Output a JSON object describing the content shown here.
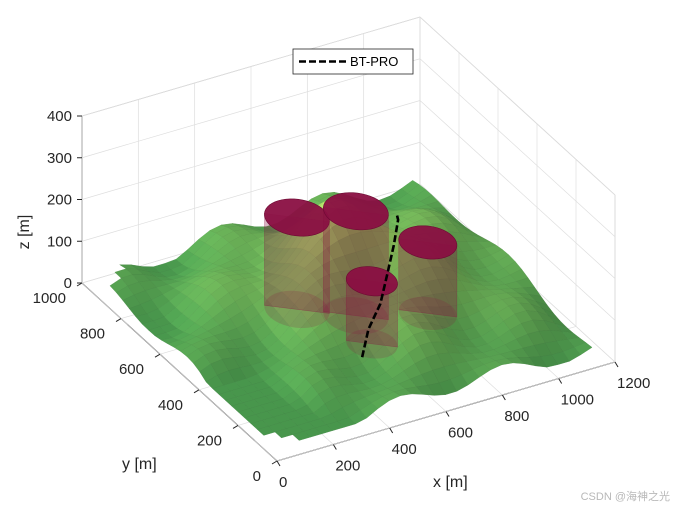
{
  "chart_data": {
    "type": "surface3d",
    "title": "",
    "xlabel": "x [m]",
    "ylabel": "y [m]",
    "zlabel": "z [m]",
    "xlim": [
      0,
      1200
    ],
    "ylim": [
      0,
      1000
    ],
    "zlim": [
      0,
      400
    ],
    "x_ticks": [
      "0",
      "200",
      "400",
      "600",
      "800",
      "1000",
      "1200"
    ],
    "y_ticks": [
      "0",
      "200",
      "400",
      "600",
      "800",
      "1000"
    ],
    "z_ticks": [
      "0",
      "100",
      "200",
      "300",
      "400"
    ],
    "grid": true,
    "legend": {
      "placement": "top",
      "entries": [
        "BT-PRO"
      ]
    },
    "colors": {
      "terrain_low": "#4c9e50",
      "terrain_high": "#c6e86c",
      "cylinder": "#8a0f42",
      "path": "#000000"
    },
    "obstacles": [
      {
        "shape": "cylinder",
        "x": 500,
        "y": 620,
        "radius": 95,
        "height": 220
      },
      {
        "shape": "cylinder",
        "x": 640,
        "y": 520,
        "radius": 95,
        "height": 250
      },
      {
        "shape": "cylinder",
        "x": 600,
        "y": 380,
        "radius": 75,
        "height": 150
      },
      {
        "shape": "cylinder",
        "x": 840,
        "y": 440,
        "radius": 85,
        "height": 170
      }
    ],
    "series": [
      {
        "name": "BT-PRO",
        "style": "dashed",
        "points": [
          [
            510,
            300,
            20
          ],
          [
            560,
            340,
            60
          ],
          [
            630,
            380,
            90
          ],
          [
            690,
            430,
            130
          ],
          [
            740,
            470,
            170
          ],
          [
            790,
            520,
            200
          ],
          [
            800,
            540,
            200
          ]
        ]
      }
    ]
  },
  "watermark": "CSDN @海神之光"
}
